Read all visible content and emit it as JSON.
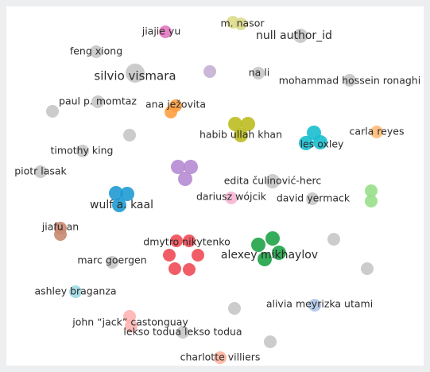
{
  "nodes": [
    {
      "label": "jiajie yu",
      "color": "#e377c2"
    },
    {
      "label": "m. nasor",
      "color": "#dbdb8d"
    },
    {
      "label": "null author_id",
      "color": "#c7c7c7"
    },
    {
      "label": "feng xiong",
      "color": "#c7c7c7"
    },
    {
      "label": "silvio vismara",
      "color": "#c7c7c7"
    },
    {
      "color": "#c5b0d5"
    },
    {
      "label": "na li",
      "color": "#c7c7c7"
    },
    {
      "label": "mohammad hossein ronaghi",
      "color": "#c7c7c7"
    },
    {
      "label": "paul p. momtaz",
      "color": "#c7c7c7"
    },
    {
      "label": "ana ježovita",
      "color": "#ff9f40"
    },
    {
      "color": "#c7c7c7"
    },
    {
      "label": "habib ullah khan",
      "color": "#bcbd22"
    },
    {
      "label": "les oxley",
      "color": "#17becf"
    },
    {
      "label": "carla reyes",
      "color": "#ffbb78"
    },
    {
      "color": "#c7c7c7"
    },
    {
      "label": "timothy king",
      "color": "#c7c7c7"
    },
    {
      "color": "#b58bd1"
    },
    {
      "label": "piotr lasak",
      "color": "#c7c7c7"
    },
    {
      "label": "edita čulinović-herc",
      "color": "#c7c7c7"
    },
    {
      "label": "dariusz wójcik",
      "color": "#f7b6d2"
    },
    {
      "label": "david yermack",
      "color": "#c7c7c7"
    },
    {
      "color": "#98df8a"
    },
    {
      "label": "wulf a. kaal",
      "color": "#1f9bd4"
    },
    {
      "label": "jiafu an",
      "color": "#c98a70"
    },
    {
      "label": "dmytro nikytenko",
      "color": "#ef4b55"
    },
    {
      "label": "alexey mikhaylov",
      "color": "#1fa347"
    },
    {
      "color": "#c7c7c7"
    },
    {
      "label": "marc goergen",
      "color": "#c7c7c7"
    },
    {
      "color": "#c7c7c7"
    },
    {
      "label": "ashley braganza",
      "color": "#9edae5"
    },
    {
      "label": "alivia meyrizka utami",
      "color": "#aec7e8"
    },
    {
      "color": "#c7c7c7"
    },
    {
      "label": "john “jack” castonguay",
      "color": "#ffb3b3"
    },
    {
      "label": "lekso todua lekso todua",
      "color": "#c7c7c7"
    },
    {
      "color": "#c7c7c7"
    },
    {
      "label": "charlotte villiers",
      "color": "#ffb3a0"
    }
  ]
}
